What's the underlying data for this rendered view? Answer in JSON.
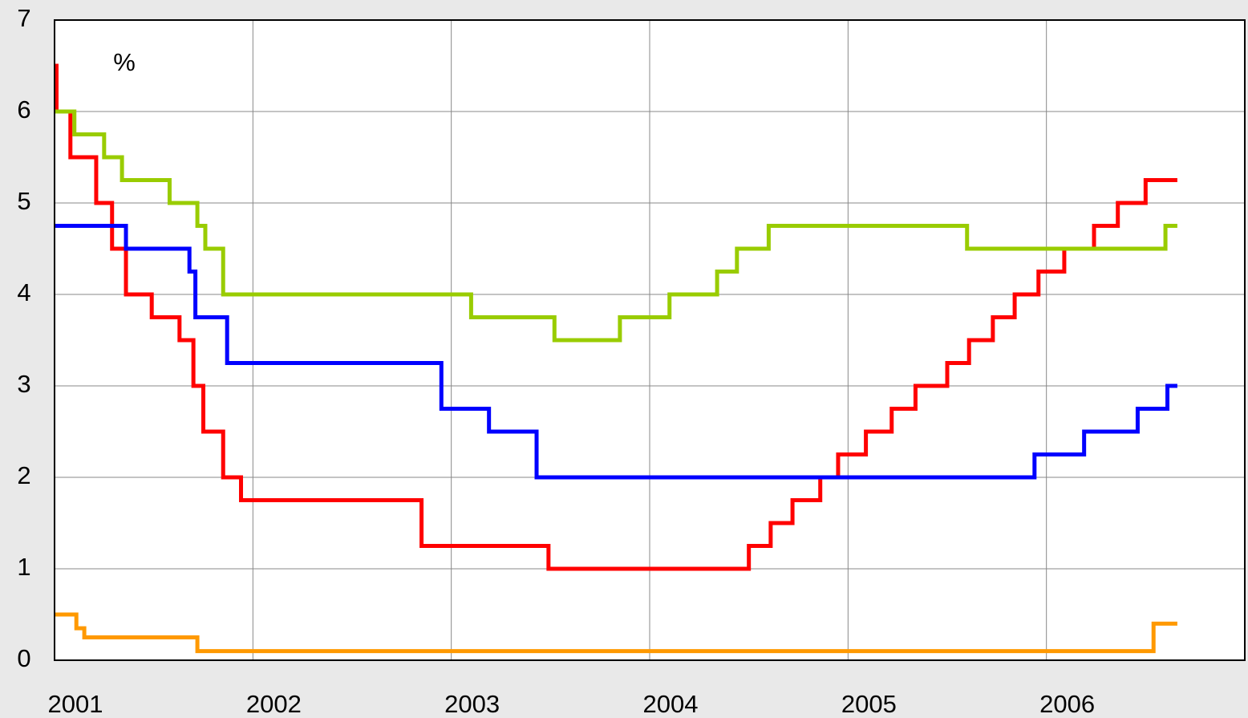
{
  "chart_data": {
    "type": "line",
    "step": "post",
    "annotation": "%",
    "xlim": [
      2001,
      2007
    ],
    "xticks": [
      2001,
      2002,
      2003,
      2004,
      2005,
      2006
    ],
    "ylim": [
      0,
      7
    ],
    "yticks": [
      0,
      1,
      2,
      3,
      4,
      5,
      6,
      7
    ],
    "grid": true,
    "series": [
      {
        "color": "#ff0000",
        "x": [
          2001.0,
          2001.01,
          2001.08,
          2001.21,
          2001.29,
          2001.36,
          2001.49,
          2001.63,
          2001.7,
          2001.75,
          2001.85,
          2001.94,
          2002.85,
          2003.49,
          2004.5,
          2004.61,
          2004.72,
          2004.86,
          2004.95,
          2005.09,
          2005.22,
          2005.34,
          2005.5,
          2005.61,
          2005.73,
          2005.84,
          2005.96,
          2006.09,
          2006.24,
          2006.36,
          2006.5,
          2006.66
        ],
        "values": [
          6.5,
          6,
          5.5,
          5,
          4.5,
          4,
          3.75,
          3.5,
          3,
          2.5,
          2,
          1.75,
          1.25,
          1,
          1.25,
          1.5,
          1.75,
          2,
          2.25,
          2.5,
          2.75,
          3,
          3.25,
          3.5,
          3.75,
          4,
          4.25,
          4.5,
          4.75,
          5,
          5.25,
          5.25
        ]
      },
      {
        "color": "#0000ff",
        "x": [
          2001.0,
          2001.36,
          2001.68,
          2001.71,
          2001.87,
          2002.95,
          2003.19,
          2003.43,
          2005.94,
          2006.19,
          2006.46,
          2006.61,
          2006.66
        ],
        "values": [
          4.75,
          4.5,
          4.25,
          3.75,
          3.25,
          2.75,
          2.5,
          2,
          2.25,
          2.5,
          2.75,
          3,
          3
        ]
      },
      {
        "color": "#99cc00",
        "x": [
          2001.0,
          2001.1,
          2001.25,
          2001.34,
          2001.58,
          2001.72,
          2001.76,
          2001.85,
          2003.1,
          2003.52,
          2003.85,
          2004.1,
          2004.34,
          2004.44,
          2004.6,
          2005.6,
          2006.6,
          2006.66
        ],
        "values": [
          6,
          5.75,
          5.5,
          5.25,
          5,
          4.75,
          4.5,
          4,
          3.75,
          3.5,
          3.75,
          4,
          4.25,
          4.5,
          4.75,
          4.5,
          4.75,
          4.75
        ]
      },
      {
        "color": "#ff9900",
        "x": [
          2001.0,
          2001.11,
          2001.15,
          2001.72,
          2006.54,
          2006.66
        ],
        "values": [
          0.5,
          0.35,
          0.25,
          0.1,
          0.4,
          0.4
        ]
      }
    ]
  }
}
